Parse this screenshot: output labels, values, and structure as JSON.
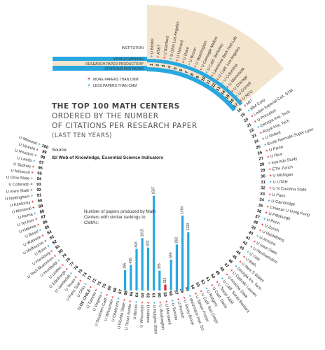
{
  "titles": {
    "line1": "THE TOP 100 MATH CENTERS",
    "line2": "ORDERED BY THE NUMBER",
    "line3": "OF CITATIONS PER RESEARCH PAPER",
    "line4": "(LAST TEN YEARS)"
  },
  "source": {
    "label": "Source:",
    "text": "ISI Web of Knowledge, Essential Science Indicators"
  },
  "ring_labels": {
    "institution": "INSTITUTION",
    "world_ranking": "WORLD RANKING",
    "production": "RESEARCH PAPER PRODUCTION*",
    "citations": "CITATIONS PER PAPER"
  },
  "legend": {
    "more": "MORE PAPERS THAN CMM",
    "less": "LESS PAPERS THAN CMM"
  },
  "note": "Number of papers produced by Math Centers with similar rankings to CMM's:",
  "colors": {
    "band_blue": "#29a8e0",
    "band_tan": "#f3e4cd",
    "more": "#d8262e",
    "less": "#2aa8df",
    "highlight": "#d8262e"
  },
  "chart_data": {
    "type": "bar",
    "institutions": [
      {
        "rank": 1,
        "name": "U Bristol"
      },
      {
        "rank": 2,
        "name": "AT&T"
      },
      {
        "rank": 3,
        "name": "U Stanford"
      },
      {
        "rank": 4,
        "name": "U Ohio Los Angeles"
      },
      {
        "rank": 5,
        "name": "U Harvard"
      },
      {
        "rank": 6,
        "name": "U Duke"
      },
      {
        "rank": 7,
        "name": "U Brown"
      },
      {
        "rank": 8,
        "name": "U Washington"
      },
      {
        "rank": 9,
        "name": "U Carnegie Mellon"
      },
      {
        "rank": 10,
        "name": "U Calif. Berkeley"
      },
      {
        "rank": 11,
        "name": "Lawrence Berk Natl Lab"
      },
      {
        "rank": 12,
        "name": "U Calif. Los Angeles"
      },
      {
        "rank": 13,
        "name": "U Columbia"
      },
      {
        "rank": 14,
        "name": "U Minnesota"
      },
      {
        "rank": 15,
        "name": "U Chicago"
      },
      {
        "rank": 16,
        "name": "U Cornell"
      },
      {
        "rank": 17,
        "name": "U NYU"
      },
      {
        "rank": 18,
        "name": "MIT"
      },
      {
        "rank": 19,
        "name": "IBM Corp"
      },
      {
        "rank": 20,
        "name": "Lodon Imperial Coll. STM"
      },
      {
        "rank": 21,
        "name": "U Princeton"
      },
      {
        "rank": 22,
        "name": "Georgia Inst. Tech"
      },
      {
        "rank": 23,
        "name": "Royal Inst. Tech"
      },
      {
        "rank": 24,
        "name": "U Oxford"
      },
      {
        "rank": 25,
        "name": "Ecole Normale Super Lyon"
      },
      {
        "rank": 26,
        "name": "U Pavia"
      },
      {
        "rank": 27,
        "name": "U Rice"
      },
      {
        "rank": 28,
        "name": "Inst Adv Study"
      },
      {
        "rank": 29,
        "name": "ETH Zurich"
      },
      {
        "rank": 30,
        "name": "U Michigan"
      },
      {
        "rank": 31,
        "name": "U UTAH"
      },
      {
        "rank": 32,
        "name": "U N Carolina State"
      },
      {
        "rank": 33,
        "name": "U Paris"
      },
      {
        "rank": 34,
        "name": "U Cambridge"
      },
      {
        "rank": 35,
        "name": "Chinese U Hong Kong"
      },
      {
        "rank": 36,
        "name": "U Pittsburgh"
      },
      {
        "rank": 37,
        "name": "U Penn"
      },
      {
        "rank": 38,
        "name": "U Zurich"
      },
      {
        "rank": 39,
        "name": "U Heidelberg"
      },
      {
        "rank": 40,
        "name": "U Arizona"
      },
      {
        "rank": 41,
        "name": "U Iowa State"
      },
      {
        "rank": 42,
        "name": "U Northwestern"
      },
      {
        "rank": 43,
        "name": "U Yale"
      },
      {
        "rank": 44,
        "name": "U Bath"
      },
      {
        "rank": 45,
        "name": "U New S Wales"
      },
      {
        "rank": 46,
        "name": "Georgia Ins. Tech"
      },
      {
        "rank": 47,
        "name": "U Catholic Leuven"
      },
      {
        "rank": 48,
        "name": "U Arizona State"
      },
      {
        "rank": 49,
        "name": "U Calif. Santa Barbara"
      },
      {
        "rank": 50,
        "name": "U Texas A&M"
      },
      {
        "rank": 51,
        "name": "U Calif. Davis"
      },
      {
        "rank": 52,
        "name": "U Rutgers"
      },
      {
        "rank": 53,
        "name": "U Calif. San Diego"
      },
      {
        "rank": 54,
        "name": "U Simon Fraser"
      },
      {
        "rank": 55,
        "name": "Weizmann Inst. Sci"
      },
      {
        "rank": 56,
        "name": "U Stony Brook"
      },
      {
        "rank": 57,
        "name": "U Purdue"
      },
      {
        "rank": 58,
        "name": "U Toronto"
      },
      {
        "rank": 59,
        "name": "U Maryland"
      },
      {
        "rank": 60,
        "name": "U Washington"
      },
      {
        "rank": 61,
        "name": "U Rutgers State"
      },
      {
        "rank": 62,
        "name": "U Indiana"
      },
      {
        "rank": 63,
        "name": "U Wisconsin"
      },
      {
        "rank": 64,
        "name": "U Illinois"
      },
      {
        "rank": 65,
        "name": "U Texas Austin"
      },
      {
        "rank": 66,
        "name": "U Florida State"
      },
      {
        "rank": 67,
        "name": "U Chalmers"
      },
      {
        "rank": 68,
        "name": "U Wisconsin"
      },
      {
        "rank": 69,
        "name": "U Southern Calif."
      },
      {
        "rank": 70,
        "name": "U Virginia"
      },
      {
        "rank": 71,
        "name": "U Toronto"
      },
      {
        "rank": 72,
        "name": "U Florida"
      },
      {
        "rank": 73,
        "name": "U Ohio"
      },
      {
        "rank": 74,
        "name": "U Paris Sud"
      },
      {
        "rank": 75,
        "name": "U Texas"
      },
      {
        "rank": 76,
        "name": "U Vanderbilt"
      },
      {
        "rank": 77,
        "name": "U Edinburgh"
      },
      {
        "rank": 78,
        "name": "U Leiden"
      },
      {
        "rank": 79,
        "name": "U Humboldt"
      },
      {
        "rank": 80,
        "name": "U Tech Muenchen"
      },
      {
        "rank": 81,
        "name": "U Hamburg"
      },
      {
        "rank": 82,
        "name": "U Bonn"
      },
      {
        "rank": 83,
        "name": "U Melbourne"
      },
      {
        "rank": 84,
        "name": "U Warwick"
      },
      {
        "rank": 85,
        "name": "U Basel"
      },
      {
        "rank": 86,
        "name": "U Hebrew"
      },
      {
        "rank": 87,
        "name": "U Tel Aviv"
      },
      {
        "rank": 88,
        "name": "U Roma"
      },
      {
        "rank": 89,
        "name": "U Montreal"
      },
      {
        "rank": 90,
        "name": "U Kentucky"
      },
      {
        "rank": 91,
        "name": "U Nottingham"
      },
      {
        "rank": 92,
        "name": "U Iowa State"
      },
      {
        "rank": 93,
        "name": "U Colorado"
      },
      {
        "rank": 94,
        "name": "U Ohio State"
      },
      {
        "rank": 95,
        "name": "U Missouri"
      },
      {
        "rank": 96,
        "name": "U Sydney"
      },
      {
        "rank": 97,
        "name": "U Leeds"
      },
      {
        "rank": 98,
        "name": "U Houston"
      },
      {
        "rank": 99,
        "name": "U Utrecht"
      },
      {
        "rank": 100,
        "name": "U Missouri"
      }
    ],
    "highlight": {
      "rank": 72,
      "name": "U DE CHILE"
    },
    "bars": [
      {
        "label": "U Kentucky",
        "value": 395
      },
      {
        "label": "U Warwick",
        "value": 496
      },
      {
        "label": "U Leeds",
        "value": 808
      },
      {
        "label": "U Florida",
        "value": 1015
      },
      {
        "label": "U Vanderbilt",
        "value": 832
      },
      {
        "label": "U Tech Muenchen",
        "value": 1837
      },
      {
        "label": "U Paris Sud",
        "value": 385
      },
      {
        "label": "U DE CHILE",
        "value": 115
      },
      {
        "label": "U Virginia",
        "value": 599
      },
      {
        "label": "U Southern Calif.",
        "value": 893
      },
      {
        "label": "U Wisconsin",
        "value": 1454
      },
      {
        "label": "U Texas",
        "value": 1133
      }
    ]
  }
}
